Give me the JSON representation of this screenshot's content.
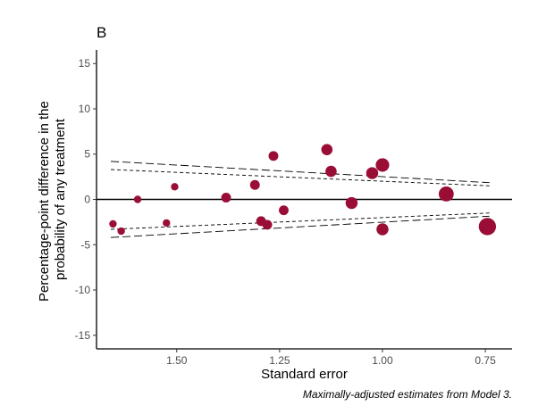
{
  "panel_label": "B",
  "caption": "Maximally-adjusted estimates from Model 3.",
  "colors": {
    "point": "#9a0d35",
    "axis": "#000000",
    "tick_text": "#4d4d4d",
    "funnel": "#000000"
  },
  "chart_data": {
    "type": "scatter",
    "xlabel": "Standard error",
    "ylabel_lines": [
      "Percentage-point difference in the",
      "probability of any treatment"
    ],
    "x_reversed": true,
    "xlim": [
      1.695,
      0.685
    ],
    "ylim": [
      -16.5,
      16.5
    ],
    "x_ticks": [
      1.5,
      1.25,
      1.0,
      0.75
    ],
    "x_tick_labels": [
      "1.50",
      "1.25",
      "1.00",
      "0.75"
    ],
    "y_ticks": [
      15,
      10,
      5,
      0,
      -5,
      -10,
      -15
    ],
    "y_tick_labels": [
      "15",
      "10",
      "5",
      "0",
      "-5",
      "-10",
      "-15"
    ],
    "grid": false,
    "reference_line_y": 0,
    "funnel_lines": [
      {
        "style": "long-dash",
        "points": [
          [
            1.66,
            4.2
          ],
          [
            0.74,
            1.85
          ]
        ]
      },
      {
        "style": "short-dash",
        "points": [
          [
            1.66,
            3.3
          ],
          [
            0.74,
            1.5
          ]
        ]
      },
      {
        "style": "short-dash",
        "points": [
          [
            1.66,
            -3.3
          ],
          [
            0.74,
            -1.5
          ]
        ]
      },
      {
        "style": "long-dash",
        "points": [
          [
            1.66,
            -4.2
          ],
          [
            0.74,
            -1.85
          ]
        ]
      }
    ],
    "points": [
      {
        "x": 1.655,
        "y": -2.7,
        "size": 1
      },
      {
        "x": 1.635,
        "y": -3.5,
        "size": 1
      },
      {
        "x": 1.595,
        "y": 0.0,
        "size": 1
      },
      {
        "x": 1.525,
        "y": -2.6,
        "size": 1
      },
      {
        "x": 1.505,
        "y": 1.4,
        "size": 1
      },
      {
        "x": 1.38,
        "y": 0.2,
        "size": 1.3
      },
      {
        "x": 1.31,
        "y": 1.6,
        "size": 1.3
      },
      {
        "x": 1.295,
        "y": -2.4,
        "size": 1.3
      },
      {
        "x": 1.28,
        "y": -2.8,
        "size": 1.3
      },
      {
        "x": 1.265,
        "y": 4.8,
        "size": 1.3
      },
      {
        "x": 1.24,
        "y": -1.2,
        "size": 1.3
      },
      {
        "x": 1.135,
        "y": 5.5,
        "size": 1.5
      },
      {
        "x": 1.125,
        "y": 3.1,
        "size": 1.5
      },
      {
        "x": 1.075,
        "y": -0.4,
        "size": 1.6
      },
      {
        "x": 1.025,
        "y": 2.9,
        "size": 1.6
      },
      {
        "x": 1.0,
        "y": 3.8,
        "size": 1.8
      },
      {
        "x": 1.0,
        "y": -3.3,
        "size": 1.6
      },
      {
        "x": 0.845,
        "y": 0.6,
        "size": 2.0
      },
      {
        "x": 0.745,
        "y": -3.0,
        "size": 2.3
      }
    ]
  }
}
